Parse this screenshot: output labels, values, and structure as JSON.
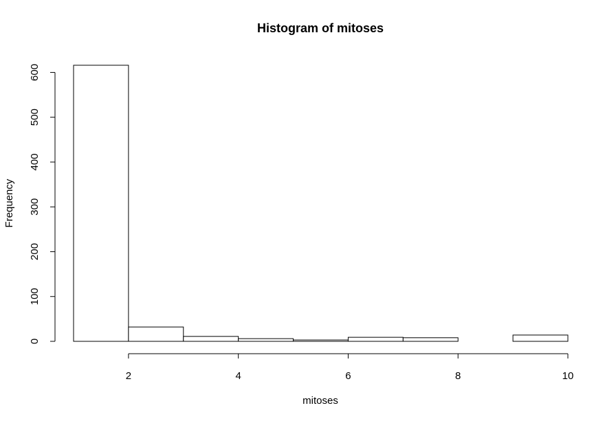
{
  "chart_data": {
    "type": "bar",
    "title": "Histogram of mitoses",
    "xlabel": "mitoses",
    "ylabel": "Frequency",
    "bins": [
      {
        "start": 1,
        "end": 2,
        "value": 616
      },
      {
        "start": 2,
        "end": 3,
        "value": 32
      },
      {
        "start": 3,
        "end": 4,
        "value": 11
      },
      {
        "start": 4,
        "end": 5,
        "value": 6
      },
      {
        "start": 5,
        "end": 6,
        "value": 3
      },
      {
        "start": 6,
        "end": 7,
        "value": 9
      },
      {
        "start": 7,
        "end": 8,
        "value": 8
      },
      {
        "start": 8,
        "end": 9,
        "value": 0
      },
      {
        "start": 9,
        "end": 10,
        "value": 14
      }
    ],
    "x_ticks": [
      2,
      4,
      6,
      8,
      10
    ],
    "y_ticks": [
      0,
      100,
      200,
      300,
      400,
      500,
      600
    ],
    "xlim": [
      1,
      10
    ],
    "ylim": [
      0,
      616
    ],
    "grid": false,
    "legend": "none",
    "colors": {
      "bar_fill": "#ffffff",
      "bar_stroke": "#000000",
      "background": "#ffffff"
    }
  }
}
